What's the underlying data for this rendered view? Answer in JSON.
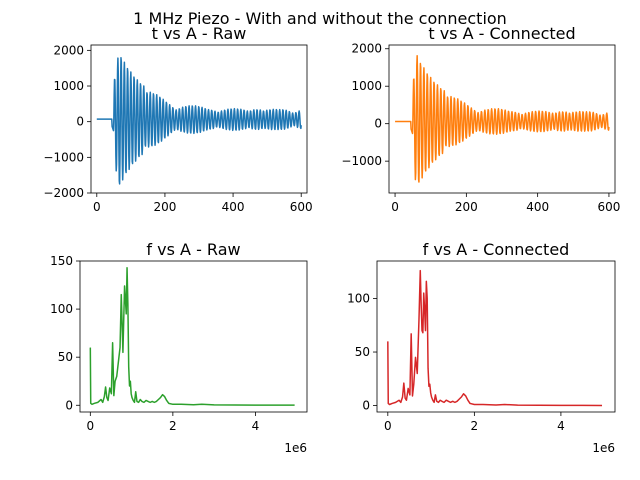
{
  "suptitle": "1 MHz Piezo - With and without the connection",
  "chart_data": [
    {
      "type": "line",
      "title": "t vs A - Raw",
      "color": "#1f77b4",
      "kind": "time",
      "xlim": [
        -17,
        617
      ],
      "ylim": [
        -2000,
        2150
      ],
      "xticks": [
        0,
        200,
        400,
        600
      ],
      "yticks": [
        -2000,
        -1000,
        0,
        1000,
        2000
      ],
      "xtick_labels": [
        "0",
        "200",
        "400",
        "600"
      ],
      "ytick_labels": [
        "−2000",
        "−1000",
        "0",
        "1000",
        "2000"
      ],
      "offset_text": "",
      "signal": {
        "x_start": 0,
        "x_end": 600,
        "flat_until": 38,
        "flat_level": 70,
        "onset": 50,
        "peak_at": 65,
        "peak_amp": 1900,
        "floor_amp": 280,
        "period": 9.5,
        "decay": 180
      },
      "x": [],
      "y": []
    },
    {
      "type": "line",
      "title": "t vs A - Connected",
      "color": "#ff7f0e",
      "kind": "time",
      "xlim": [
        -17,
        617
      ],
      "ylim": [
        -1850,
        2100
      ],
      "xticks": [
        0,
        200,
        400,
        600
      ],
      "yticks": [
        -1000,
        0,
        1000,
        2000
      ],
      "xtick_labels": [
        "0",
        "200",
        "400",
        "600"
      ],
      "ytick_labels": [
        "−1000",
        "0",
        "1000",
        "2000"
      ],
      "offset_text": "",
      "signal": {
        "x_start": 0,
        "x_end": 600,
        "flat_until": 38,
        "flat_level": 60,
        "onset": 50,
        "peak_at": 60,
        "peak_amp": 1800,
        "floor_amp": 260,
        "period": 9.5,
        "decay": 170
      },
      "x": [],
      "y": []
    },
    {
      "type": "line",
      "title": "f vs A - Raw",
      "color": "#2ca02c",
      "kind": "freq",
      "xlim": [
        -250000,
        5250000
      ],
      "ylim": [
        -7,
        150
      ],
      "xticks": [
        0,
        2000000,
        4000000
      ],
      "yticks": [
        0,
        50,
        100,
        150
      ],
      "xtick_labels": [
        "0",
        "2",
        "4"
      ],
      "ytick_labels": [
        "0",
        "50",
        "100",
        "150"
      ],
      "offset_text": "1e6",
      "x": [
        0,
        10000,
        40000,
        100000,
        180000,
        260000,
        300000,
        340000,
        370000,
        400000,
        430000,
        470000,
        510000,
        540000,
        570000,
        600000,
        640000,
        680000,
        720000,
        750000,
        770000,
        790000,
        810000,
        830000,
        850000,
        870000,
        890000,
        910000,
        930000,
        950000,
        970000,
        990000,
        1010000,
        1040000,
        1070000,
        1100000,
        1130000,
        1170000,
        1210000,
        1250000,
        1300000,
        1350000,
        1400000,
        1450000,
        1500000,
        1550000,
        1600000,
        1650000,
        1700000,
        1750000,
        1800000,
        1850000,
        1900000,
        2000000,
        2200000,
        2500000,
        2700000,
        3000000,
        3500000,
        4000000,
        4500000,
        4950000
      ],
      "y": [
        60,
        2,
        1,
        2,
        3,
        6,
        3,
        9,
        19,
        8,
        5,
        18,
        12,
        65,
        10,
        25,
        30,
        45,
        60,
        115,
        85,
        55,
        90,
        124,
        110,
        95,
        143,
        105,
        40,
        20,
        25,
        12,
        8,
        5,
        3,
        14,
        4,
        3,
        6,
        4,
        3,
        5,
        4,
        3,
        4,
        3,
        4,
        6,
        8,
        11,
        9,
        5,
        2,
        1,
        1,
        0.5,
        1,
        0.4,
        0.3,
        0.2,
        0.2,
        0.1
      ]
    },
    {
      "type": "line",
      "title": "f vs A - Connected",
      "color": "#d62728",
      "kind": "freq",
      "xlim": [
        -250000,
        5250000
      ],
      "ylim": [
        -6,
        135
      ],
      "xticks": [
        0,
        2000000,
        4000000
      ],
      "yticks": [
        0,
        50,
        100
      ],
      "xtick_labels": [
        "0",
        "2",
        "4"
      ],
      "ytick_labels": [
        "0",
        "50",
        "100"
      ],
      "offset_text": "1e6",
      "x": [
        0,
        10000,
        40000,
        100000,
        180000,
        260000,
        300000,
        340000,
        370000,
        400000,
        430000,
        470000,
        510000,
        540000,
        570000,
        600000,
        640000,
        680000,
        720000,
        750000,
        770000,
        790000,
        810000,
        830000,
        850000,
        870000,
        890000,
        910000,
        930000,
        950000,
        970000,
        990000,
        1010000,
        1040000,
        1070000,
        1100000,
        1130000,
        1170000,
        1210000,
        1250000,
        1300000,
        1350000,
        1400000,
        1450000,
        1500000,
        1550000,
        1600000,
        1650000,
        1700000,
        1750000,
        1800000,
        1850000,
        1900000,
        2000000,
        2200000,
        2500000,
        2700000,
        3000000,
        3500000,
        4000000,
        4500000,
        4950000
      ],
      "y": [
        60,
        2,
        1,
        2,
        3,
        5,
        3,
        8,
        21,
        7,
        5,
        16,
        10,
        67,
        9,
        20,
        45,
        30,
        80,
        126,
        95,
        70,
        68,
        105,
        90,
        70,
        116,
        100,
        35,
        18,
        20,
        12,
        8,
        5,
        3,
        10,
        4,
        3,
        5,
        4,
        3,
        5,
        4,
        3,
        4,
        3,
        4,
        6,
        8,
        11,
        9,
        5,
        2,
        1,
        1,
        0.5,
        1,
        0.4,
        0.3,
        0.2,
        0.2,
        0.1
      ]
    }
  ]
}
